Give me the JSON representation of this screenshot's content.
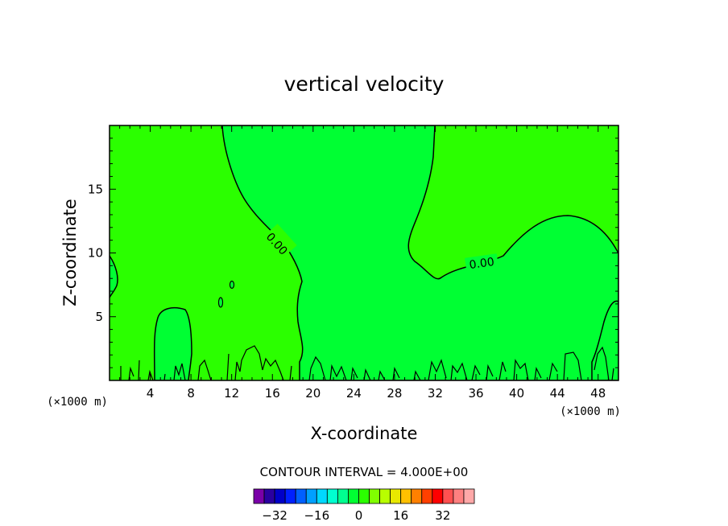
{
  "chart_data": {
    "type": "heatmap",
    "title": "vertical velocity",
    "xlabel": "X-coordinate",
    "ylabel": "Z-coordinate",
    "x_unit": "(×1000 m)",
    "y_unit": "(×1000 m)",
    "xlim": [
      0,
      50
    ],
    "ylim": [
      0,
      20
    ],
    "x_ticks": [
      4,
      8,
      12,
      16,
      20,
      24,
      28,
      32,
      36,
      40,
      44,
      48
    ],
    "y_ticks": [
      5,
      10,
      15
    ],
    "contour_interval_text": "CONTOUR INTERVAL = 4.000E+00",
    "contour_labels": [
      "0.00",
      "0.00"
    ],
    "region_colors": {
      "positive": "#2bff00",
      "negative": "#00ff33"
    },
    "colorbar": {
      "colors": [
        "#7a00a8",
        "#2a00a0",
        "#0000c8",
        "#0020ff",
        "#0060ff",
        "#00a0ff",
        "#00d8ff",
        "#00ffd0",
        "#00ff90",
        "#00ff33",
        "#2bff00",
        "#80ff00",
        "#b8ff00",
        "#e8e800",
        "#ffc000",
        "#ff8000",
        "#ff4000",
        "#ff0000",
        "#ff5050",
        "#ff8080",
        "#ffa8a8"
      ],
      "tick_labels": [
        "-32",
        "-16",
        "0",
        "16",
        "32"
      ],
      "tick_values": [
        -32,
        -16,
        0,
        16,
        32
      ],
      "range": [
        -40,
        44
      ]
    }
  }
}
